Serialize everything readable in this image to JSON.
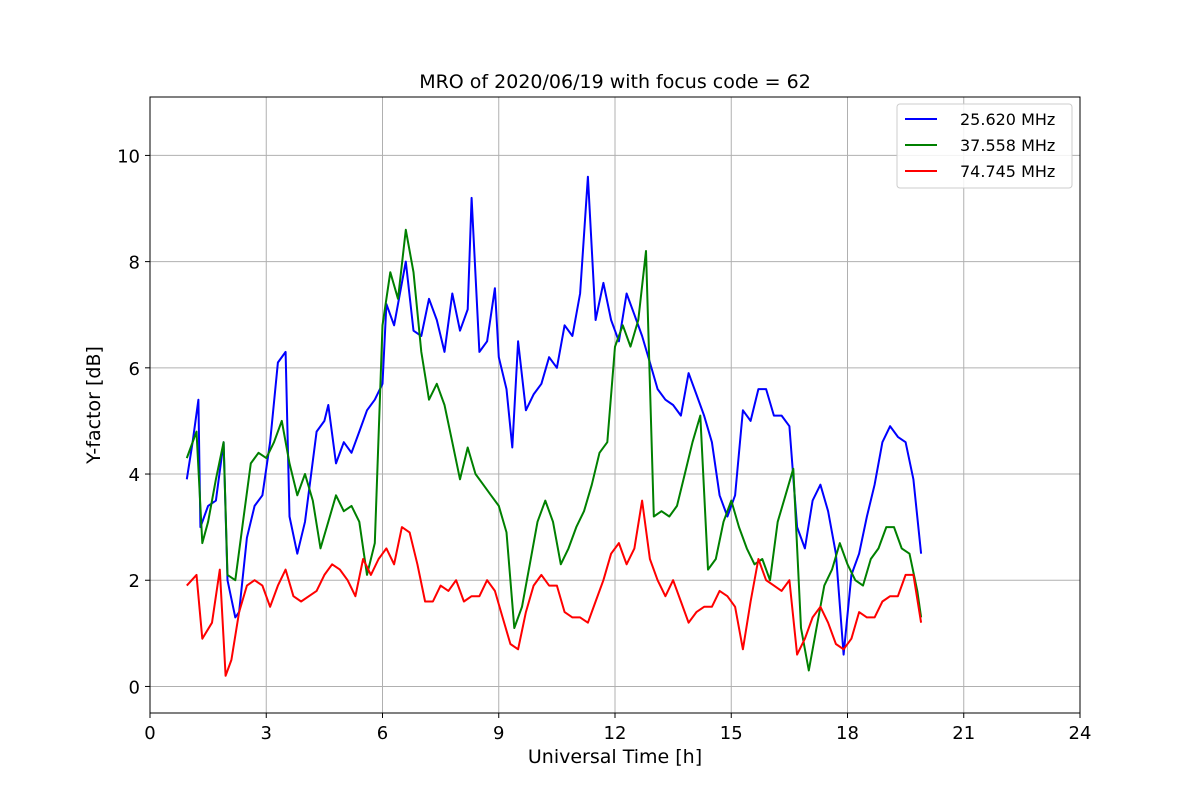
{
  "chart_data": {
    "type": "line",
    "title": "MRO of 2020/06/19 with focus code = 62",
    "xlabel": "Universal Time [h]",
    "ylabel": "Y-factor [dB]",
    "xlim": [
      0,
      24
    ],
    "ylim": [
      -0.5,
      11.1
    ],
    "xticks": [
      0,
      3,
      6,
      9,
      12,
      15,
      18,
      21,
      24
    ],
    "yticks": [
      0,
      2,
      4,
      6,
      8,
      10
    ],
    "grid": true,
    "legend_position": "top-right",
    "series": [
      {
        "name": "25.620 MHz",
        "color": "#0000ff",
        "points": [
          [
            0.95,
            3.9
          ],
          [
            1.1,
            4.6
          ],
          [
            1.25,
            5.4
          ],
          [
            1.3,
            3.0
          ],
          [
            1.5,
            3.4
          ],
          [
            1.7,
            3.5
          ],
          [
            1.9,
            4.6
          ],
          [
            2.0,
            2.0
          ],
          [
            2.2,
            1.3
          ],
          [
            2.3,
            1.4
          ],
          [
            2.5,
            2.8
          ],
          [
            2.7,
            3.4
          ],
          [
            2.9,
            3.6
          ],
          [
            3.1,
            4.6
          ],
          [
            3.3,
            6.1
          ],
          [
            3.5,
            6.3
          ],
          [
            3.6,
            3.2
          ],
          [
            3.8,
            2.5
          ],
          [
            4.0,
            3.1
          ],
          [
            4.3,
            4.8
          ],
          [
            4.5,
            5.0
          ],
          [
            4.6,
            5.3
          ],
          [
            4.8,
            4.2
          ],
          [
            5.0,
            4.6
          ],
          [
            5.2,
            4.4
          ],
          [
            5.4,
            4.8
          ],
          [
            5.6,
            5.2
          ],
          [
            5.8,
            5.4
          ],
          [
            6.0,
            5.7
          ],
          [
            6.1,
            7.2
          ],
          [
            6.3,
            6.8
          ],
          [
            6.6,
            8.0
          ],
          [
            6.8,
            6.7
          ],
          [
            7.0,
            6.6
          ],
          [
            7.2,
            7.3
          ],
          [
            7.4,
            6.9
          ],
          [
            7.6,
            6.3
          ],
          [
            7.8,
            7.4
          ],
          [
            8.0,
            6.7
          ],
          [
            8.2,
            7.1
          ],
          [
            8.3,
            9.2
          ],
          [
            8.5,
            6.3
          ],
          [
            8.7,
            6.5
          ],
          [
            8.9,
            7.5
          ],
          [
            9.0,
            6.2
          ],
          [
            9.2,
            5.6
          ],
          [
            9.35,
            4.5
          ],
          [
            9.5,
            6.5
          ],
          [
            9.7,
            5.2
          ],
          [
            9.9,
            5.5
          ],
          [
            10.1,
            5.7
          ],
          [
            10.3,
            6.2
          ],
          [
            10.5,
            6.0
          ],
          [
            10.7,
            6.8
          ],
          [
            10.9,
            6.6
          ],
          [
            11.1,
            7.4
          ],
          [
            11.3,
            9.6
          ],
          [
            11.5,
            6.9
          ],
          [
            11.7,
            7.6
          ],
          [
            11.9,
            6.9
          ],
          [
            12.1,
            6.5
          ],
          [
            12.3,
            7.4
          ],
          [
            12.5,
            7.0
          ],
          [
            12.7,
            6.6
          ],
          [
            12.9,
            6.1
          ],
          [
            13.1,
            5.6
          ],
          [
            13.3,
            5.4
          ],
          [
            13.5,
            5.3
          ],
          [
            13.7,
            5.1
          ],
          [
            13.9,
            5.9
          ],
          [
            14.1,
            5.5
          ],
          [
            14.3,
            5.1
          ],
          [
            14.5,
            4.6
          ],
          [
            14.7,
            3.6
          ],
          [
            14.9,
            3.2
          ],
          [
            15.1,
            3.6
          ],
          [
            15.3,
            5.2
          ],
          [
            15.5,
            5.0
          ],
          [
            15.7,
            5.6
          ],
          [
            15.9,
            5.6
          ],
          [
            16.1,
            5.1
          ],
          [
            16.3,
            5.1
          ],
          [
            16.5,
            4.9
          ],
          [
            16.7,
            3.0
          ],
          [
            16.9,
            2.6
          ],
          [
            17.1,
            3.5
          ],
          [
            17.3,
            3.8
          ],
          [
            17.5,
            3.3
          ],
          [
            17.7,
            2.5
          ],
          [
            17.9,
            0.6
          ],
          [
            18.1,
            2.1
          ],
          [
            18.3,
            2.5
          ],
          [
            18.5,
            3.2
          ],
          [
            18.7,
            3.8
          ],
          [
            18.9,
            4.6
          ],
          [
            19.1,
            4.9
          ],
          [
            19.3,
            4.7
          ],
          [
            19.5,
            4.6
          ],
          [
            19.7,
            3.9
          ],
          [
            19.9,
            2.5
          ]
        ]
      },
      {
        "name": "37.558 MHz",
        "color": "#008000",
        "points": [
          [
            0.95,
            4.3
          ],
          [
            1.2,
            4.8
          ],
          [
            1.35,
            2.7
          ],
          [
            1.5,
            3.1
          ],
          [
            1.7,
            3.9
          ],
          [
            1.9,
            4.6
          ],
          [
            2.0,
            2.1
          ],
          [
            2.2,
            2.0
          ],
          [
            2.4,
            3.1
          ],
          [
            2.6,
            4.2
          ],
          [
            2.8,
            4.4
          ],
          [
            3.0,
            4.3
          ],
          [
            3.2,
            4.6
          ],
          [
            3.4,
            5.0
          ],
          [
            3.6,
            4.2
          ],
          [
            3.8,
            3.6
          ],
          [
            4.0,
            4.0
          ],
          [
            4.2,
            3.5
          ],
          [
            4.4,
            2.6
          ],
          [
            4.6,
            3.1
          ],
          [
            4.8,
            3.6
          ],
          [
            5.0,
            3.3
          ],
          [
            5.2,
            3.4
          ],
          [
            5.4,
            3.1
          ],
          [
            5.6,
            2.1
          ],
          [
            5.8,
            2.7
          ],
          [
            6.0,
            6.8
          ],
          [
            6.2,
            7.8
          ],
          [
            6.4,
            7.3
          ],
          [
            6.6,
            8.6
          ],
          [
            6.8,
            7.8
          ],
          [
            7.0,
            6.3
          ],
          [
            7.2,
            5.4
          ],
          [
            7.4,
            5.7
          ],
          [
            7.6,
            5.3
          ],
          [
            7.8,
            4.6
          ],
          [
            8.0,
            3.9
          ],
          [
            8.2,
            4.5
          ],
          [
            8.4,
            4.0
          ],
          [
            8.6,
            3.8
          ],
          [
            8.8,
            3.6
          ],
          [
            9.0,
            3.4
          ],
          [
            9.2,
            2.9
          ],
          [
            9.4,
            1.1
          ],
          [
            9.6,
            1.5
          ],
          [
            9.8,
            2.3
          ],
          [
            10.0,
            3.1
          ],
          [
            10.2,
            3.5
          ],
          [
            10.4,
            3.1
          ],
          [
            10.6,
            2.3
          ],
          [
            10.8,
            2.6
          ],
          [
            11.0,
            3.0
          ],
          [
            11.2,
            3.3
          ],
          [
            11.4,
            3.8
          ],
          [
            11.6,
            4.4
          ],
          [
            11.8,
            4.6
          ],
          [
            12.0,
            6.4
          ],
          [
            12.2,
            6.8
          ],
          [
            12.4,
            6.4
          ],
          [
            12.6,
            6.9
          ],
          [
            12.8,
            8.2
          ],
          [
            13.0,
            3.2
          ],
          [
            13.2,
            3.3
          ],
          [
            13.4,
            3.2
          ],
          [
            13.6,
            3.4
          ],
          [
            13.8,
            4.0
          ],
          [
            14.0,
            4.6
          ],
          [
            14.2,
            5.1
          ],
          [
            14.4,
            2.2
          ],
          [
            14.6,
            2.4
          ],
          [
            14.8,
            3.1
          ],
          [
            15.0,
            3.5
          ],
          [
            15.2,
            3.0
          ],
          [
            15.4,
            2.6
          ],
          [
            15.6,
            2.3
          ],
          [
            15.8,
            2.4
          ],
          [
            16.0,
            2.0
          ],
          [
            16.2,
            3.1
          ],
          [
            16.4,
            3.6
          ],
          [
            16.6,
            4.1
          ],
          [
            16.8,
            1.1
          ],
          [
            17.0,
            0.3
          ],
          [
            17.2,
            1.1
          ],
          [
            17.4,
            1.9
          ],
          [
            17.6,
            2.2
          ],
          [
            17.8,
            2.7
          ],
          [
            18.0,
            2.3
          ],
          [
            18.2,
            2.0
          ],
          [
            18.4,
            1.9
          ],
          [
            18.6,
            2.4
          ],
          [
            18.8,
            2.6
          ],
          [
            19.0,
            3.0
          ],
          [
            19.2,
            3.0
          ],
          [
            19.4,
            2.6
          ],
          [
            19.6,
            2.5
          ],
          [
            19.8,
            1.8
          ],
          [
            19.9,
            1.3
          ]
        ]
      },
      {
        "name": "74.745 MHz",
        "color": "#ff0000",
        "points": [
          [
            0.95,
            1.9
          ],
          [
            1.2,
            2.1
          ],
          [
            1.35,
            0.9
          ],
          [
            1.6,
            1.2
          ],
          [
            1.8,
            2.2
          ],
          [
            1.95,
            0.2
          ],
          [
            2.1,
            0.5
          ],
          [
            2.3,
            1.4
          ],
          [
            2.5,
            1.9
          ],
          [
            2.7,
            2.0
          ],
          [
            2.9,
            1.9
          ],
          [
            3.1,
            1.5
          ],
          [
            3.3,
            1.9
          ],
          [
            3.5,
            2.2
          ],
          [
            3.7,
            1.7
          ],
          [
            3.9,
            1.6
          ],
          [
            4.1,
            1.7
          ],
          [
            4.3,
            1.8
          ],
          [
            4.5,
            2.1
          ],
          [
            4.7,
            2.3
          ],
          [
            4.9,
            2.2
          ],
          [
            5.1,
            2.0
          ],
          [
            5.3,
            1.7
          ],
          [
            5.5,
            2.4
          ],
          [
            5.7,
            2.1
          ],
          [
            5.9,
            2.4
          ],
          [
            6.1,
            2.6
          ],
          [
            6.3,
            2.3
          ],
          [
            6.5,
            3.0
          ],
          [
            6.7,
            2.9
          ],
          [
            6.9,
            2.3
          ],
          [
            7.1,
            1.6
          ],
          [
            7.3,
            1.6
          ],
          [
            7.5,
            1.9
          ],
          [
            7.7,
            1.8
          ],
          [
            7.9,
            2.0
          ],
          [
            8.1,
            1.6
          ],
          [
            8.3,
            1.7
          ],
          [
            8.5,
            1.7
          ],
          [
            8.7,
            2.0
          ],
          [
            8.9,
            1.8
          ],
          [
            9.1,
            1.3
          ],
          [
            9.3,
            0.8
          ],
          [
            9.5,
            0.7
          ],
          [
            9.7,
            1.4
          ],
          [
            9.9,
            1.9
          ],
          [
            10.1,
            2.1
          ],
          [
            10.3,
            1.9
          ],
          [
            10.5,
            1.9
          ],
          [
            10.7,
            1.4
          ],
          [
            10.9,
            1.3
          ],
          [
            11.1,
            1.3
          ],
          [
            11.3,
            1.2
          ],
          [
            11.5,
            1.6
          ],
          [
            11.7,
            2.0
          ],
          [
            11.9,
            2.5
          ],
          [
            12.1,
            2.7
          ],
          [
            12.3,
            2.3
          ],
          [
            12.5,
            2.6
          ],
          [
            12.7,
            3.5
          ],
          [
            12.9,
            2.4
          ],
          [
            13.1,
            2.0
          ],
          [
            13.3,
            1.7
          ],
          [
            13.5,
            2.0
          ],
          [
            13.7,
            1.6
          ],
          [
            13.9,
            1.2
          ],
          [
            14.1,
            1.4
          ],
          [
            14.3,
            1.5
          ],
          [
            14.5,
            1.5
          ],
          [
            14.7,
            1.8
          ],
          [
            14.9,
            1.7
          ],
          [
            15.1,
            1.5
          ],
          [
            15.3,
            0.7
          ],
          [
            15.5,
            1.6
          ],
          [
            15.7,
            2.4
          ],
          [
            15.9,
            2.0
          ],
          [
            16.1,
            1.9
          ],
          [
            16.3,
            1.8
          ],
          [
            16.5,
            2.0
          ],
          [
            16.7,
            0.6
          ],
          [
            16.9,
            0.9
          ],
          [
            17.1,
            1.3
          ],
          [
            17.3,
            1.5
          ],
          [
            17.5,
            1.2
          ],
          [
            17.7,
            0.8
          ],
          [
            17.9,
            0.7
          ],
          [
            18.1,
            0.9
          ],
          [
            18.3,
            1.4
          ],
          [
            18.5,
            1.3
          ],
          [
            18.7,
            1.3
          ],
          [
            18.9,
            1.6
          ],
          [
            19.1,
            1.7
          ],
          [
            19.3,
            1.7
          ],
          [
            19.5,
            2.1
          ],
          [
            19.7,
            2.1
          ],
          [
            19.9,
            1.2
          ]
        ]
      }
    ]
  }
}
